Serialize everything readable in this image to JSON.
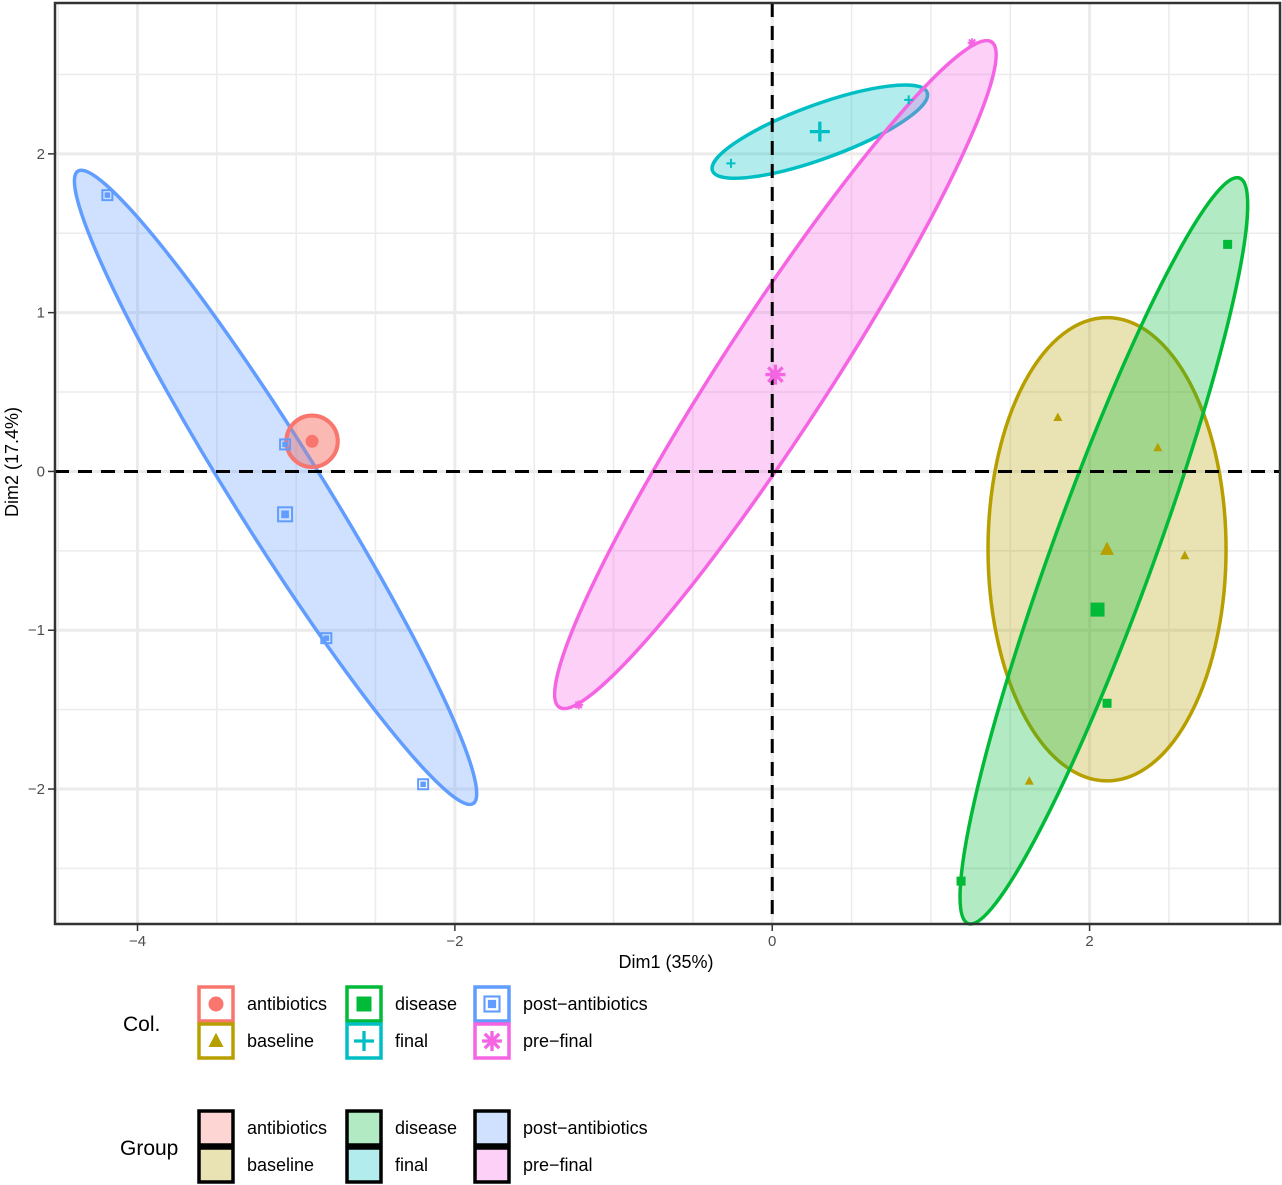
{
  "chart_data": {
    "type": "scatter",
    "xlabel": "Dim1 (35%)",
    "ylabel": "Dim2 (17.4%)",
    "xlim": [
      -4.52,
      3.2
    ],
    "ylim": [
      -2.85,
      2.95
    ],
    "x_ticks": [
      -4,
      -2,
      0,
      2
    ],
    "y_ticks": [
      -2,
      -1,
      0,
      1,
      2
    ],
    "x_tick_labels": [
      "−4",
      "−2",
      "0",
      "2"
    ],
    "y_tick_labels": [
      "−2",
      "−1",
      "0",
      "1",
      "2"
    ],
    "grid": true,
    "reference_lines": {
      "x": 0,
      "y": 0,
      "style": "dashed"
    },
    "colors": {
      "antibiotics": "#F8766D",
      "baseline": "#B79F00",
      "disease": "#00BA38",
      "final": "#00BFC4",
      "post-antibiotics": "#619CFF",
      "pre-final": "#F564E3"
    },
    "series": [
      {
        "name": "antibiotics",
        "marker": "circle",
        "points": [
          [
            -2.9,
            0.19
          ]
        ],
        "centroid": [
          -2.9,
          0.19
        ],
        "ellipse": {
          "cx": -2.9,
          "cy": 0.19,
          "rx": 0.16,
          "ry": 0.16,
          "angle": 0
        }
      },
      {
        "name": "baseline",
        "marker": "triangle",
        "points": [
          [
            1.8,
            0.34
          ],
          [
            2.43,
            0.15
          ],
          [
            2.6,
            -0.53
          ],
          [
            1.62,
            -1.95
          ]
        ],
        "centroid": [
          2.11,
          -0.49
        ],
        "ellipse": {
          "cx": 2.11,
          "cy": -0.49,
          "rx": 0.75,
          "ry": 1.46,
          "angle": 0
        }
      },
      {
        "name": "disease",
        "marker": "square",
        "points": [
          [
            2.87,
            1.43
          ],
          [
            2.11,
            -1.46
          ],
          [
            1.19,
            -2.58
          ]
        ],
        "centroid": [
          2.05,
          -0.87
        ],
        "ellipse": {
          "cx": 2.09,
          "cy": -0.5,
          "rx": 2.5,
          "ry": 0.32,
          "angle": 70
        }
      },
      {
        "name": "final",
        "marker": "plus",
        "points": [
          [
            -0.26,
            1.94
          ],
          [
            0.86,
            2.34
          ]
        ],
        "centroid": [
          0.3,
          2.14
        ],
        "ellipse": {
          "cx": 0.3,
          "cy": 2.14,
          "rx": 0.72,
          "ry": 0.17,
          "angle": 20
        }
      },
      {
        "name": "post-antibiotics",
        "marker": "boxed-square",
        "points": [
          [
            -4.19,
            1.74
          ],
          [
            -3.07,
            0.17
          ],
          [
            -2.81,
            -1.05
          ],
          [
            -2.2,
            -1.97
          ]
        ],
        "centroid": [
          -3.07,
          -0.27
        ],
        "ellipse": {
          "cx": -3.13,
          "cy": -0.1,
          "rx": 2.35,
          "ry": 0.28,
          "angle": -58
        }
      },
      {
        "name": "pre-final",
        "marker": "asterisk",
        "points": [
          [
            -1.22,
            -1.47
          ],
          [
            1.26,
            2.7
          ]
        ],
        "centroid": [
          0.02,
          0.61
        ],
        "ellipse": {
          "cx": 0.02,
          "cy": 0.61,
          "rx": 2.5,
          "ry": 0.34,
          "angle": 57
        }
      }
    ]
  },
  "legend": {
    "col_title": "Col.",
    "group_title": "Group",
    "items": [
      "antibiotics",
      "baseline",
      "disease",
      "final",
      "post−antibiotics",
      "pre−final"
    ]
  }
}
